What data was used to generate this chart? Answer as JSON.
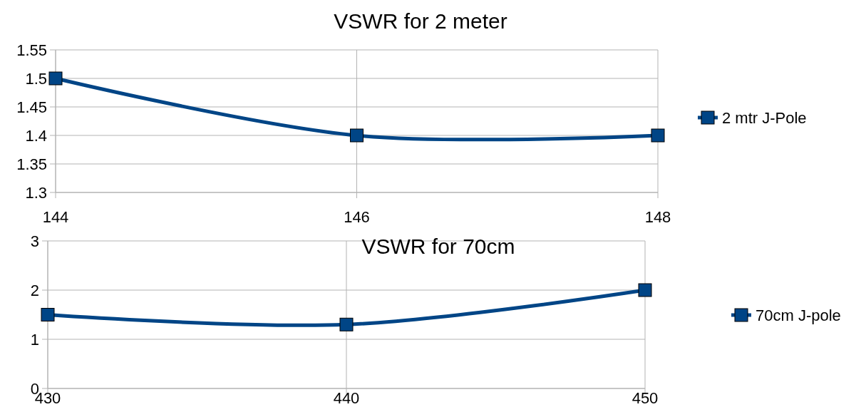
{
  "chart_data": [
    {
      "type": "line",
      "title": "VSWR for 2 meter",
      "x": [
        144,
        146,
        148
      ],
      "series": [
        {
          "name": "2 mtr J-Pole",
          "color": "#004586",
          "values": [
            1.5,
            1.4,
            1.4
          ]
        }
      ],
      "xlim": [
        144,
        148
      ],
      "xticks": [
        144,
        146,
        148
      ],
      "ylim": [
        1.3,
        1.55
      ],
      "yticks": [
        1.3,
        1.35,
        1.4,
        1.45,
        1.5,
        1.55
      ],
      "grid": true,
      "legend": "right",
      "marker": "square"
    },
    {
      "type": "line",
      "title": "VSWR for 70cm",
      "x": [
        430,
        440,
        450
      ],
      "series": [
        {
          "name": "70cm J-pole",
          "color": "#004586",
          "values": [
            1.5,
            1.3,
            2
          ]
        }
      ],
      "xlim": [
        430,
        450
      ],
      "xticks": [
        430,
        440,
        450
      ],
      "ylim": [
        0,
        3
      ],
      "yticks": [
        0,
        1,
        2,
        3
      ],
      "grid": true,
      "legend": "right",
      "marker": "square"
    }
  ]
}
